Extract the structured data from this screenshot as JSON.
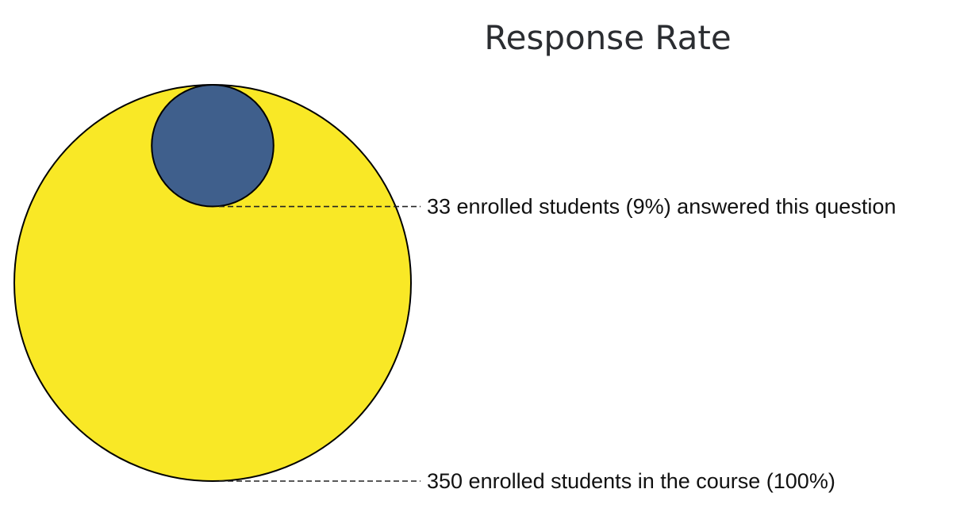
{
  "chart_data": {
    "type": "nested-circle",
    "title": "Response Rate",
    "total": {
      "count": 350,
      "percent": 100,
      "label": "350 enrolled students in the course (100%)",
      "color": "#f9e826"
    },
    "part": {
      "count": 33,
      "percent": 9,
      "label": "33 enrolled students (9%) answered this question",
      "color": "#3f5f8c"
    },
    "grid": false,
    "legend": "none"
  }
}
